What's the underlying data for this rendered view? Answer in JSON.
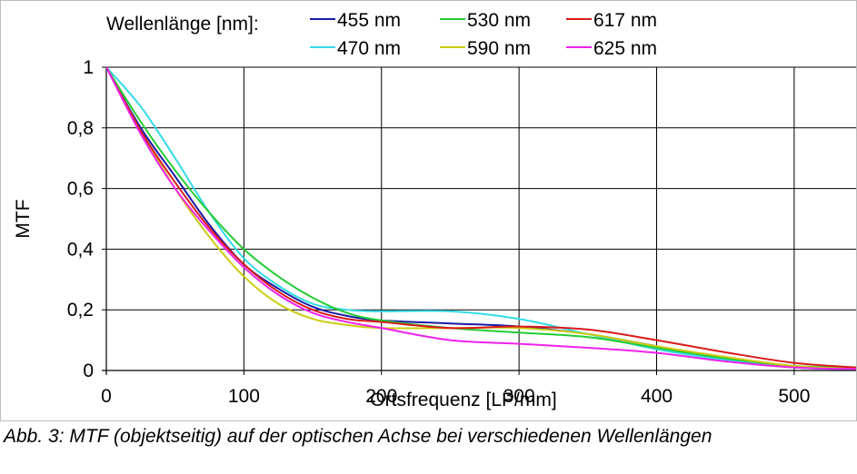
{
  "caption": "Abb. 3: MTF (objektseitig) auf der optischen Achse bei verschiedenen Wellenlängen",
  "chart_data": {
    "type": "line",
    "title": "",
    "xlabel": "Ortsfrequenz [LP/mm]",
    "ylabel": "MTF",
    "xlim": [
      0,
      545
    ],
    "ylim": [
      0,
      1
    ],
    "xticks": [
      0,
      100,
      200,
      300,
      400,
      500
    ],
    "yticks": [
      0,
      0.2,
      0.4,
      0.6,
      0.8,
      1
    ],
    "xtick_labels": [
      "0",
      "100",
      "200",
      "300",
      "400",
      "500"
    ],
    "ytick_labels": [
      "0",
      "0,2",
      "0,4",
      "0,6",
      "0,8",
      "1"
    ],
    "grid": true,
    "legend_title": "Wellenlänge [nm]:",
    "legend_position": "top",
    "series": [
      {
        "name": "455 nm",
        "color": "#1a1aa6",
        "x": [
          0,
          25,
          50,
          75,
          100,
          125,
          150,
          175,
          200,
          250,
          300,
          350,
          400,
          450,
          500,
          545
        ],
        "y": [
          1.0,
          0.8,
          0.64,
          0.48,
          0.35,
          0.27,
          0.21,
          0.18,
          0.165,
          0.155,
          0.145,
          0.12,
          0.08,
          0.04,
          0.01,
          0.005
        ]
      },
      {
        "name": "470 nm",
        "color": "#33dbe6",
        "x": [
          0,
          25,
          50,
          75,
          100,
          125,
          150,
          175,
          200,
          250,
          300,
          350,
          400,
          450,
          500,
          545
        ],
        "y": [
          1.0,
          0.87,
          0.7,
          0.52,
          0.37,
          0.28,
          0.22,
          0.2,
          0.195,
          0.195,
          0.17,
          0.12,
          0.07,
          0.035,
          0.01,
          0.005
        ]
      },
      {
        "name": "530 nm",
        "color": "#22cc33",
        "x": [
          0,
          25,
          50,
          75,
          100,
          125,
          150,
          175,
          200,
          250,
          300,
          350,
          400,
          450,
          500,
          545
        ],
        "y": [
          1.0,
          0.82,
          0.66,
          0.52,
          0.4,
          0.31,
          0.24,
          0.19,
          0.165,
          0.14,
          0.125,
          0.11,
          0.075,
          0.04,
          0.015,
          0.01
        ]
      },
      {
        "name": "590 nm",
        "color": "#cccc11",
        "x": [
          0,
          25,
          50,
          75,
          100,
          125,
          150,
          175,
          200,
          250,
          300,
          350,
          400,
          450,
          500,
          545
        ],
        "y": [
          1.0,
          0.79,
          0.6,
          0.44,
          0.31,
          0.22,
          0.17,
          0.15,
          0.14,
          0.14,
          0.14,
          0.12,
          0.08,
          0.045,
          0.015,
          0.005
        ]
      },
      {
        "name": "617 nm",
        "color": "#d91a1a",
        "x": [
          0,
          25,
          50,
          75,
          100,
          125,
          150,
          175,
          200,
          250,
          300,
          350,
          400,
          450,
          500,
          545
        ],
        "y": [
          1.0,
          0.79,
          0.62,
          0.47,
          0.35,
          0.26,
          0.2,
          0.17,
          0.16,
          0.14,
          0.145,
          0.135,
          0.1,
          0.06,
          0.025,
          0.01
        ]
      },
      {
        "name": "625 nm",
        "color": "#ee22ee",
        "x": [
          0,
          25,
          50,
          75,
          100,
          125,
          150,
          175,
          200,
          250,
          300,
          350,
          400,
          450,
          500,
          545
        ],
        "y": [
          1.0,
          0.78,
          0.6,
          0.46,
          0.34,
          0.25,
          0.19,
          0.16,
          0.14,
          0.1,
          0.088,
          0.075,
          0.058,
          0.03,
          0.01,
          0.005
        ]
      }
    ]
  }
}
